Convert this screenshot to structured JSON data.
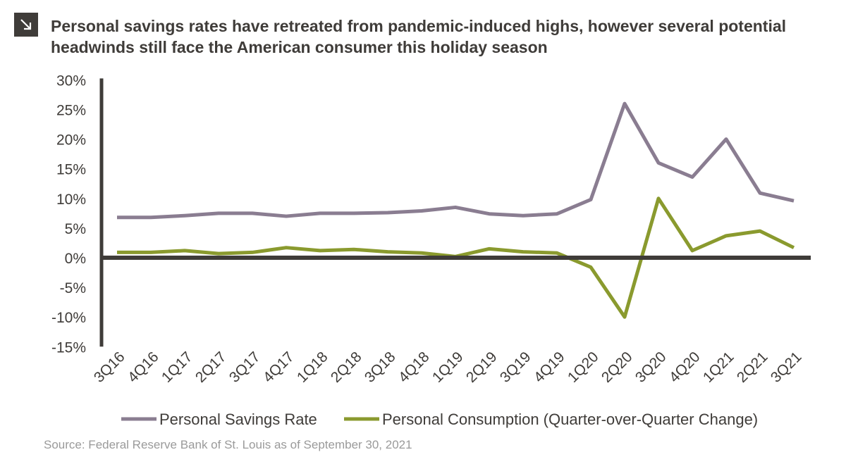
{
  "header": {
    "icon": "arrow-down-right-icon",
    "title_line1": "Personal savings rates have retreated from pandemic-induced highs, however several potential",
    "title_line2": "headwinds still face the American consumer this holiday season"
  },
  "source": "Source: Federal Reserve Bank of St. Louis as of September 30, 2021",
  "chart_data": {
    "type": "line",
    "title": "Personal savings rates have retreated from pandemic-induced highs, however several potential headwinds still face the American consumer this holiday season",
    "xlabel": "",
    "ylabel": "",
    "ylim": [
      -15,
      30
    ],
    "yticks": [
      "30%",
      "25%",
      "20%",
      "15%",
      "10%",
      "5%",
      "0%",
      "-5%",
      "-10%",
      "-15%"
    ],
    "ytick_values": [
      30,
      25,
      20,
      15,
      10,
      5,
      0,
      -5,
      -10,
      -15
    ],
    "grid": false,
    "legend_position": "bottom",
    "categories": [
      "3Q16",
      "4Q16",
      "1Q17",
      "2Q17",
      "3Q17",
      "4Q17",
      "1Q18",
      "2Q18",
      "3Q18",
      "4Q18",
      "1Q19",
      "2Q19",
      "3Q19",
      "4Q19",
      "1Q20",
      "2Q20",
      "3Q20",
      "4Q20",
      "1Q21",
      "2Q21",
      "3Q21"
    ],
    "series": [
      {
        "name": "Personal Savings Rate",
        "color": "#8a7d91",
        "values": [
          6.8,
          6.8,
          7.1,
          7.5,
          7.5,
          7.0,
          7.5,
          7.5,
          7.6,
          7.9,
          8.5,
          7.4,
          7.1,
          7.4,
          9.8,
          26.0,
          16.0,
          13.6,
          20.0,
          10.9,
          9.6
        ]
      },
      {
        "name": "Personal Consumption (Quarter-over-Quarter Change)",
        "color": "#8a9a2e",
        "values": [
          0.9,
          0.9,
          1.2,
          0.7,
          0.9,
          1.7,
          1.2,
          1.4,
          1.0,
          0.8,
          0.2,
          1.5,
          1.0,
          0.8,
          -1.6,
          -10.0,
          10.0,
          1.2,
          3.7,
          4.5,
          1.7
        ]
      }
    ]
  }
}
